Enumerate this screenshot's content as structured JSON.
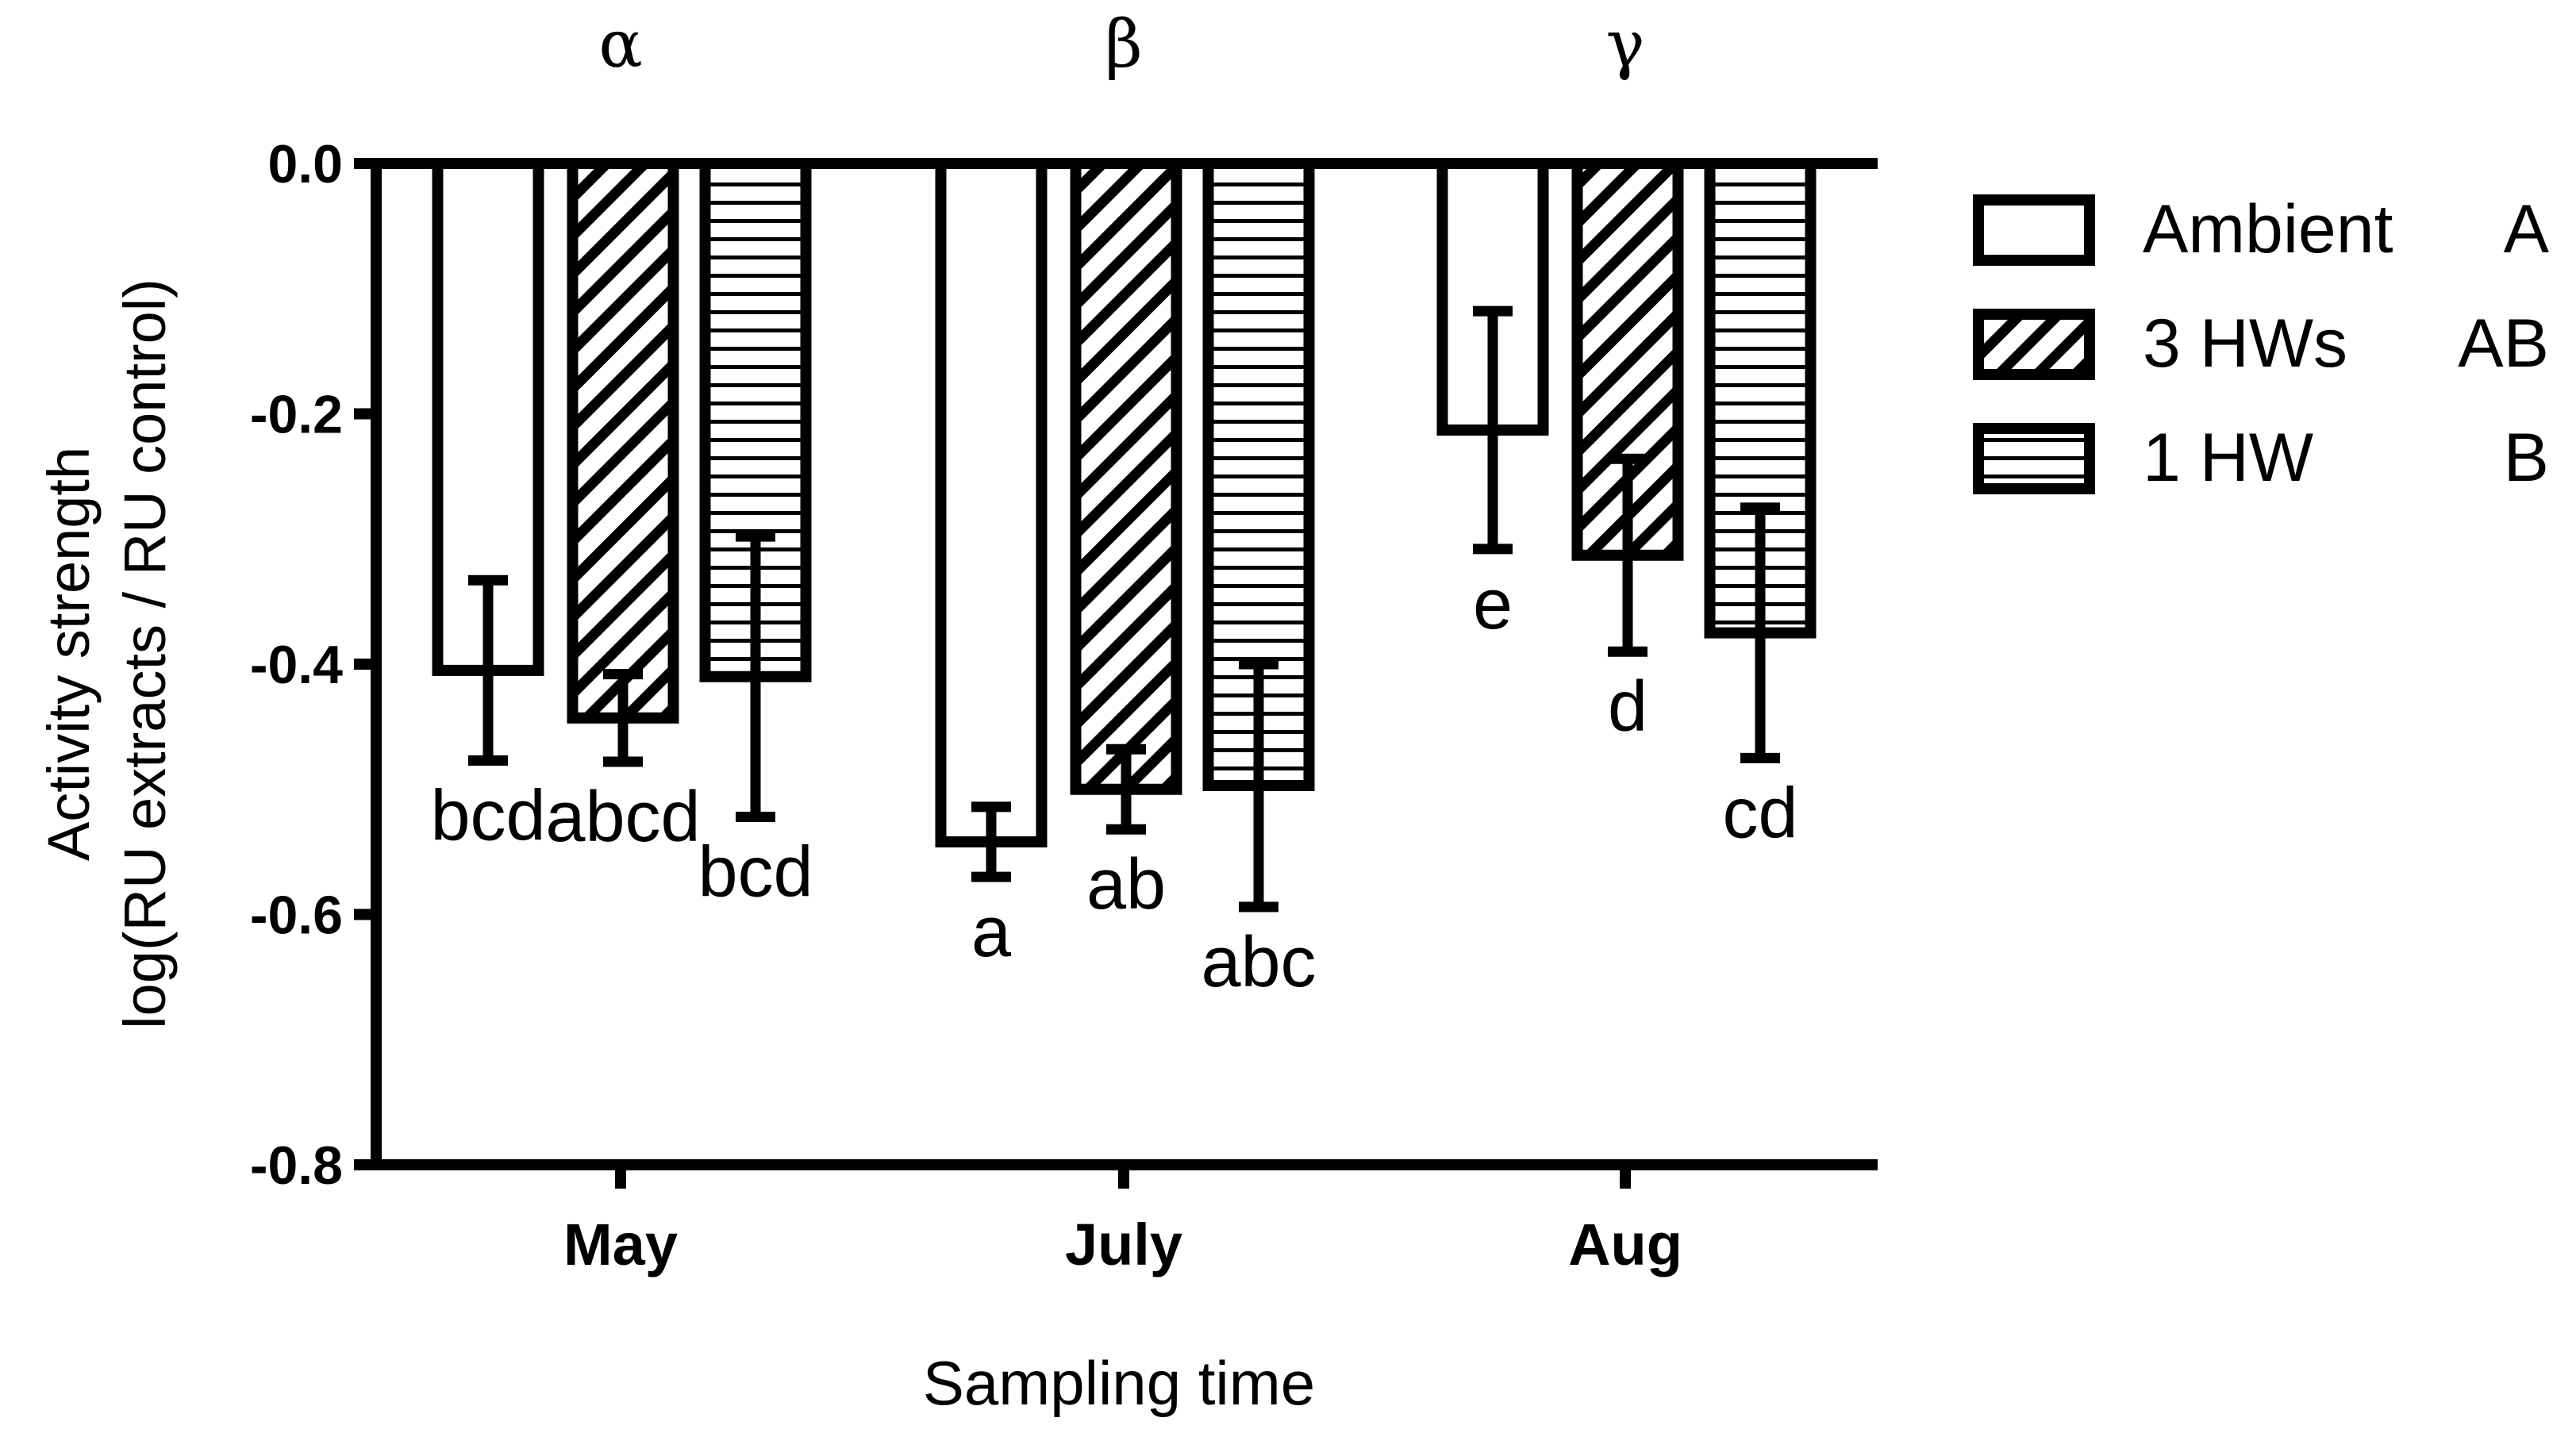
{
  "chart_data": {
    "type": "bar",
    "xlabel": "Sampling time",
    "ylabel_lines": [
      "Activity strength",
      "log(RU extracts / RU control)"
    ],
    "ylim": [
      -0.8,
      0.0
    ],
    "yticks": [
      0.0,
      -0.2,
      -0.4,
      -0.6,
      -0.8
    ],
    "ytick_labels": [
      "0.0",
      "-0.2",
      "-0.4",
      "-0.6",
      "-0.8"
    ],
    "categories": [
      "May",
      "July",
      "Aug"
    ],
    "group_labels": [
      "α",
      "β",
      "γ"
    ],
    "series": [
      {
        "name": "Ambient",
        "group": "A",
        "pattern": "open",
        "values": [
          -0.405,
          -0.542,
          -0.213
        ],
        "errors": [
          0.072,
          0.028,
          0.095
        ],
        "letters": [
          "bcd",
          "a",
          "e"
        ]
      },
      {
        "name": "3 HWs",
        "group": "AB",
        "pattern": "diagonal",
        "values": [
          -0.443,
          -0.5,
          -0.313
        ],
        "errors": [
          0.035,
          0.032,
          0.077
        ],
        "letters": [
          "abcd",
          "ab",
          "d"
        ]
      },
      {
        "name": "1 HW",
        "group": "B",
        "pattern": "horizontal",
        "values": [
          -0.41,
          -0.497,
          -0.375
        ],
        "errors": [
          0.112,
          0.097,
          0.1
        ],
        "letters": [
          "bcd",
          "abc",
          "cd"
        ]
      }
    ],
    "legend_position": "right",
    "grid": false,
    "colors": {
      "stroke": "#000000",
      "fill": "#ffffff"
    }
  }
}
